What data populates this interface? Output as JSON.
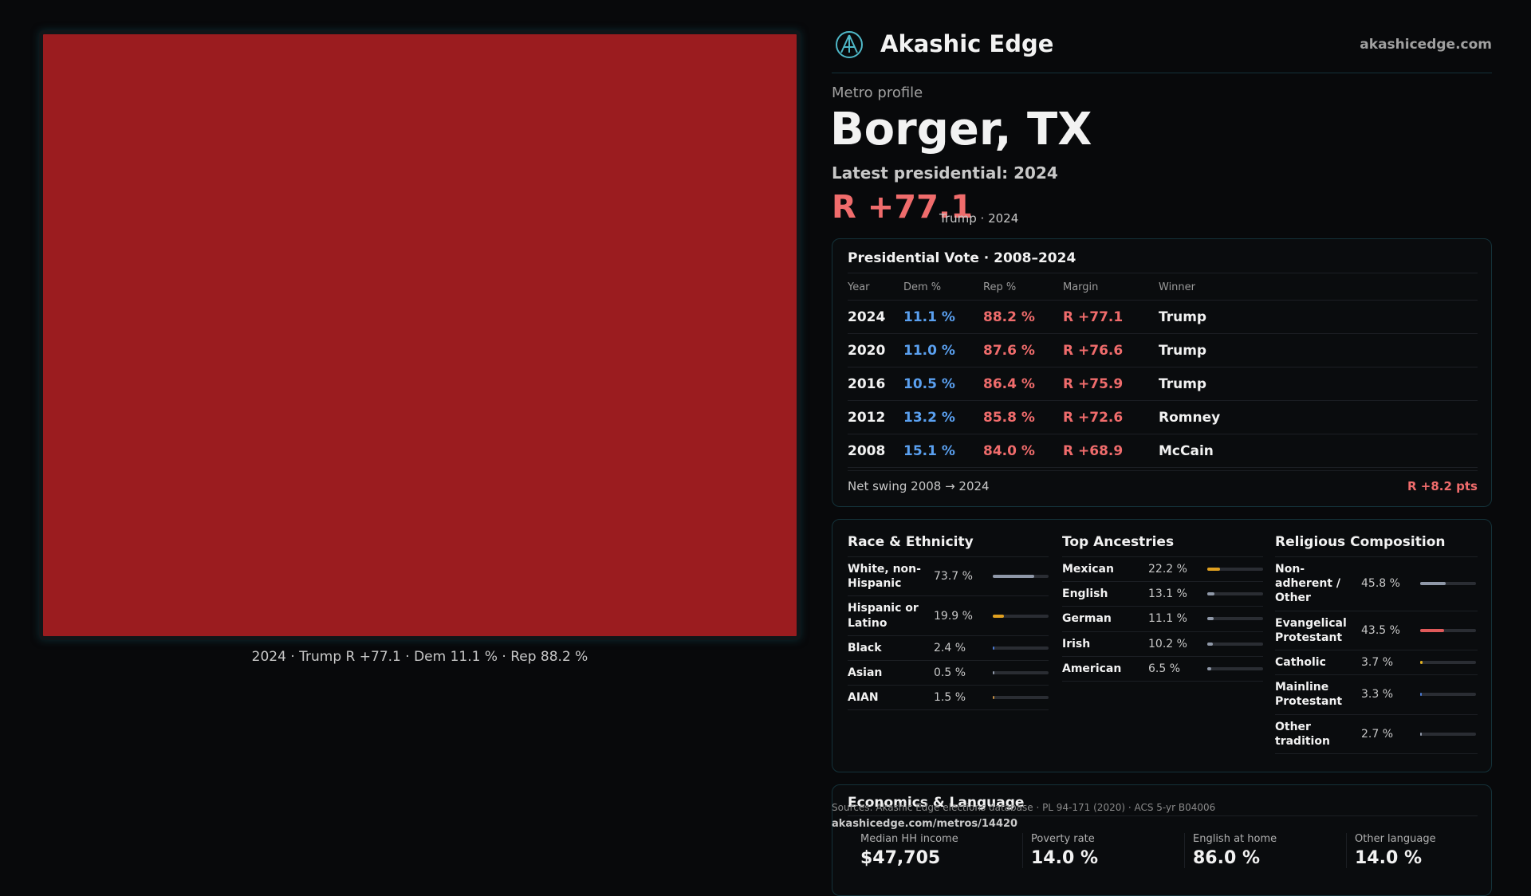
{
  "header": {
    "brand": "Akashic Edge",
    "site": "akashicedge.com"
  },
  "profile": {
    "kicker": "Metro profile",
    "name": "Borger, TX",
    "latest": "Latest presidential: 2024",
    "margin": "R +77.1",
    "winner_note": "Trump · 2024"
  },
  "map": {
    "caption": "2024 · Trump R +77.1 · Dem 11.1 % · Rep 88.2 %"
  },
  "vote_table": {
    "title": "Presidential Vote · 2008–2024",
    "columns": [
      "Year",
      "Dem %",
      "Rep %",
      "Margin",
      "Winner"
    ],
    "rows": [
      [
        "2024",
        "11.1 %",
        "88.2 %",
        "R +77.1",
        "Trump"
      ],
      [
        "2020",
        "11.0 %",
        "87.6 %",
        "R +76.6",
        "Trump"
      ],
      [
        "2016",
        "10.5 %",
        "86.4 %",
        "R +75.9",
        "Trump"
      ],
      [
        "2012",
        "13.2 %",
        "85.8 %",
        "R +72.6",
        "Romney"
      ],
      [
        "2008",
        "15.1 %",
        "84.0 %",
        "R +68.9",
        "McCain"
      ]
    ],
    "net_swing_label": "Net swing 2008 → 2024",
    "net_swing": "R +8.2 pts"
  },
  "demographics": [
    {
      "title": "Race & Ethnicity",
      "xlim": [
        0,
        100
      ],
      "rows": [
        {
          "label": "White, non-Hispanic",
          "value": 73.7,
          "value_label": "73.7 %",
          "color": "#8f98a8"
        },
        {
          "label": "Hispanic or Latino",
          "value": 19.9,
          "value_label": "19.9 %",
          "color": "#e0a020"
        },
        {
          "label": "Black",
          "value": 2.4,
          "value_label": "2.4 %",
          "color": "#4a78d0"
        },
        {
          "label": "Asian",
          "value": 0.5,
          "value_label": "0.5 %",
          "color": "#8f98a8"
        },
        {
          "label": "AIAN",
          "value": 1.5,
          "value_label": "1.5 %",
          "color": "#c08a40"
        }
      ]
    },
    {
      "title": "Top Ancestries",
      "xlim": [
        0,
        100
      ],
      "rows": [
        {
          "label": "Mexican",
          "value": 22.2,
          "value_label": "22.2 %",
          "color": "#e0a020"
        },
        {
          "label": "English",
          "value": 13.1,
          "value_label": "13.1 %",
          "color": "#8f98a8"
        },
        {
          "label": "German",
          "value": 11.1,
          "value_label": "11.1 %",
          "color": "#8f98a8"
        },
        {
          "label": "Irish",
          "value": 10.2,
          "value_label": "10.2 %",
          "color": "#8f98a8"
        },
        {
          "label": "American",
          "value": 6.5,
          "value_label": "6.5 %",
          "color": "#8f98a8"
        }
      ]
    },
    {
      "title": "Religious Composition",
      "xlim": [
        0,
        100
      ],
      "rows": [
        {
          "label": "Non-adherent / Other",
          "value": 45.8,
          "value_label": "45.8 %",
          "color": "#8f98a8"
        },
        {
          "label": "Evangelical Protestant",
          "value": 43.5,
          "value_label": "43.5 %",
          "color": "#e05a5a"
        },
        {
          "label": "Catholic",
          "value": 3.7,
          "value_label": "3.7 %",
          "color": "#e0b020"
        },
        {
          "label": "Mainline Protestant",
          "value": 3.3,
          "value_label": "3.3 %",
          "color": "#4a78d0"
        },
        {
          "label": "Other tradition",
          "value": 2.7,
          "value_label": "2.7 %",
          "color": "#8f98a8"
        }
      ]
    }
  ],
  "economics": {
    "title": "Economics & Language",
    "stats": [
      {
        "label": "Median HH income",
        "value": "$47,705"
      },
      {
        "label": "Poverty rate",
        "value": "14.0 %"
      },
      {
        "label": "English at home",
        "value": "86.0 %"
      },
      {
        "label": "Other language",
        "value": "14.0 %"
      }
    ]
  },
  "footer": {
    "sources": "Sources: Akashic Edge elections database · PL 94-171 (2020) · ACS 5-yr B04006",
    "url": "akashicedge.com/metros/14420"
  }
}
